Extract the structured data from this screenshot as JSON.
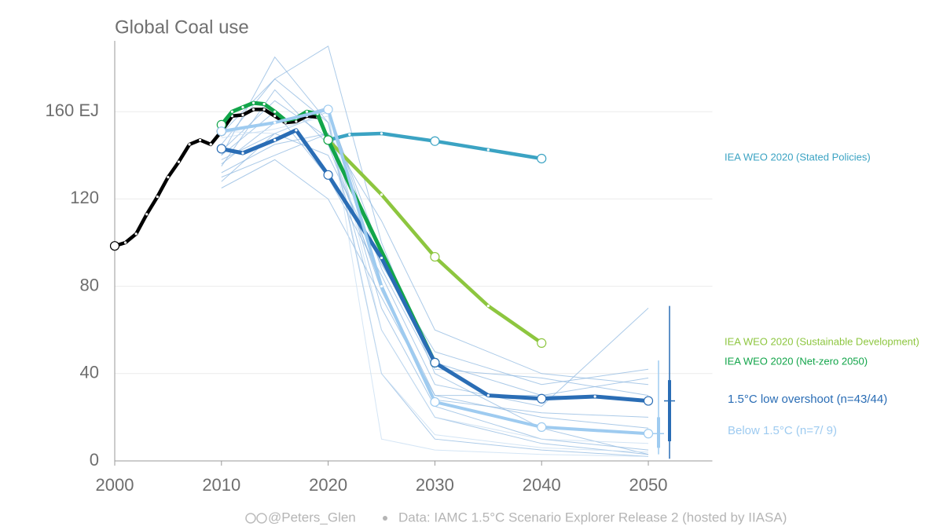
{
  "chart_data": {
    "type": "line",
    "title": "Global Coal use",
    "xlim": [
      2000,
      2056
    ],
    "xticks": [
      2000,
      2010,
      2020,
      2030,
      2040,
      2050
    ],
    "ylim": [
      0,
      190
    ],
    "yticks": [
      0,
      40,
      80,
      120,
      {
        "value": 160,
        "label": "160 EJ"
      }
    ],
    "grid": true,
    "scenario_x": [
      2010,
      2015,
      2020,
      2025,
      2030,
      2040,
      2050
    ],
    "scenarios": [
      {
        "color": "#8fb8e0",
        "values": [
          138,
          150,
          160,
          95,
          45,
          30,
          28
        ]
      },
      {
        "color": "#8fb8e0",
        "values": [
          130,
          140,
          150,
          110,
          60,
          40,
          35
        ]
      },
      {
        "color": "#8fb8e0",
        "values": [
          135,
          170,
          145,
          80,
          30,
          20,
          15
        ]
      },
      {
        "color": "#8fb8e0",
        "values": [
          140,
          185,
          155,
          70,
          25,
          10,
          5
        ]
      },
      {
        "color": "#8fb8e0",
        "values": [
          128,
          150,
          140,
          90,
          50,
          35,
          42
        ]
      },
      {
        "color": "#8fb8e0",
        "values": [
          145,
          175,
          190,
          100,
          40,
          15,
          3
        ]
      },
      {
        "color": "#8fb8e0",
        "values": [
          132,
          145,
          150,
          60,
          20,
          8,
          3
        ]
      },
      {
        "color": "#8fb8e0",
        "values": [
          140,
          160,
          130,
          85,
          35,
          25,
          70
        ]
      },
      {
        "color": "#8fb8e0",
        "values": [
          125,
          138,
          120,
          75,
          30,
          30,
          38
        ]
      },
      {
        "color": "#8fb8e0",
        "values": [
          150,
          175,
          155,
          40,
          10,
          5,
          2
        ]
      },
      {
        "color": "#8fb8e0",
        "values": [
          136,
          155,
          162,
          88,
          42,
          38,
          30
        ]
      },
      {
        "color": "#8fb8e0",
        "values": [
          142,
          165,
          148,
          78,
          28,
          22,
          20
        ]
      },
      {
        "color": "#c6dcf2",
        "values": [
          151,
          150,
          160,
          10,
          5,
          3,
          2
        ]
      },
      {
        "color": "#c6dcf2",
        "values": [
          148,
          152,
          158,
          40,
          12,
          6,
          4
        ]
      },
      {
        "color": "#c6dcf2",
        "values": [
          150,
          155,
          161,
          60,
          20,
          10,
          8
        ]
      }
    ],
    "series": [
      {
        "color": "#000000",
        "x": [
          2000,
          2001,
          2002,
          2003,
          2004,
          2005,
          2006,
          2007,
          2008,
          2009,
          2010,
          2011,
          2012,
          2013,
          2014,
          2015,
          2016,
          2017,
          2018,
          2019
        ],
        "values": [
          98.5,
          100,
          104,
          113,
          121,
          130,
          137,
          145,
          147,
          145,
          151,
          158,
          158.5,
          161,
          161,
          158,
          155,
          155.5,
          158,
          157.5
        ]
      },
      {
        "name": "IEA WEO 2020 (Stated Policies)",
        "color": "#3ba3c3",
        "x": [
          2020,
          2022,
          2025,
          2030,
          2035,
          2040
        ],
        "values": [
          147,
          149.5,
          150,
          146.5,
          142.5,
          138.5
        ]
      },
      {
        "name": "IEA WEO 2020 (Sustainable Development)",
        "color": "#8dc63f",
        "x": [
          2020,
          2025,
          2030,
          2035,
          2040
        ],
        "values": [
          147,
          122,
          93.5,
          71,
          54
        ]
      },
      {
        "name": "IEA WEO 2020 (Net-zero 2050)",
        "color": "#12a54a",
        "x": [
          2010,
          2011,
          2012,
          2013,
          2014,
          2015,
          2016,
          2017,
          2018,
          2019,
          2020,
          2030
        ],
        "values": [
          154,
          160,
          162,
          164,
          163.5,
          160,
          156,
          157,
          160,
          159,
          147,
          45
        ]
      },
      {
        "name": "1.5°C low overshoot (n=43/44)",
        "color": "#2a6db5",
        "x": [
          2010,
          2012,
          2015,
          2017,
          2020,
          2025,
          2030,
          2035,
          2040,
          2045,
          2050
        ],
        "values": [
          143,
          141,
          147,
          151.5,
          131,
          93,
          45,
          30,
          28.5,
          29.5,
          27.5
        ],
        "range": {
          "min": 1,
          "q1": 9,
          "median": 27.5,
          "q3": 37,
          "max": 71
        }
      },
      {
        "name": "Below 1.5°C (n=7/ 9)",
        "color": "#9ecbf0",
        "x": [
          2010,
          2015,
          2020,
          2025,
          2030,
          2040,
          2050
        ],
        "values": [
          151,
          155,
          161,
          80,
          27,
          15.5,
          12.5
        ],
        "range": {
          "min": 3,
          "q1": 6,
          "median": 12.5,
          "q3": 20,
          "max": 46
        }
      }
    ],
    "source": "@Peters_Glen",
    "note": "Data: IAMC 1.5°C Scenario Explorer Release 2 (hosted by IIASA)"
  }
}
